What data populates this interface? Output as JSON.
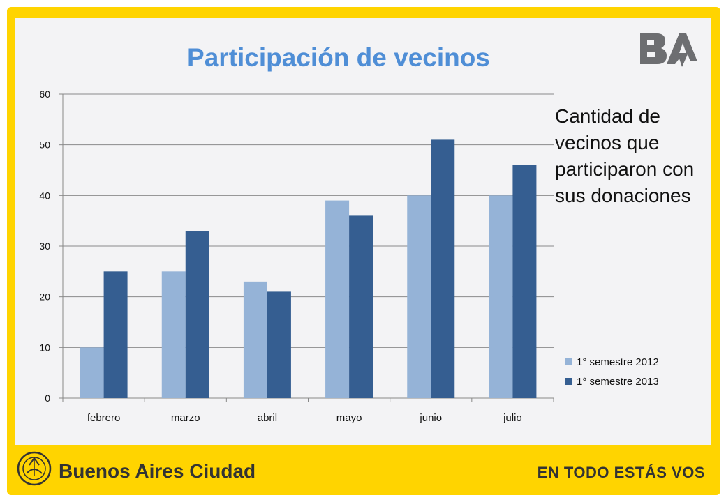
{
  "slide": {
    "side_note": "Cantidad de vecinos que participaron con sus donaciones",
    "footer_brand": "Buenos Aires Ciudad",
    "footer_slogan": "EN TODO ESTÁS VOS",
    "logo_text": "BA",
    "colors": {
      "frame": "#ffd400",
      "title": "#4f8ed6",
      "series_2012": "#95b3d7",
      "series_2013": "#355e91"
    }
  },
  "chart_data": {
    "type": "bar",
    "title": "Participación de vecinos",
    "xlabel": "",
    "ylabel": "",
    "ylim": [
      0,
      60
    ],
    "yticks": [
      "0",
      "10",
      "20",
      "30",
      "40",
      "50",
      "60"
    ],
    "grid": true,
    "legend_position": "bottom-right",
    "categories": [
      "febrero",
      "marzo",
      "abril",
      "mayo",
      "junio",
      "julio"
    ],
    "series": [
      {
        "name": "1° semestre 2012",
        "values": [
          10,
          25,
          23,
          39,
          40,
          40
        ]
      },
      {
        "name": "1° semestre 2013",
        "values": [
          25,
          33,
          21,
          36,
          51,
          46
        ]
      }
    ]
  }
}
